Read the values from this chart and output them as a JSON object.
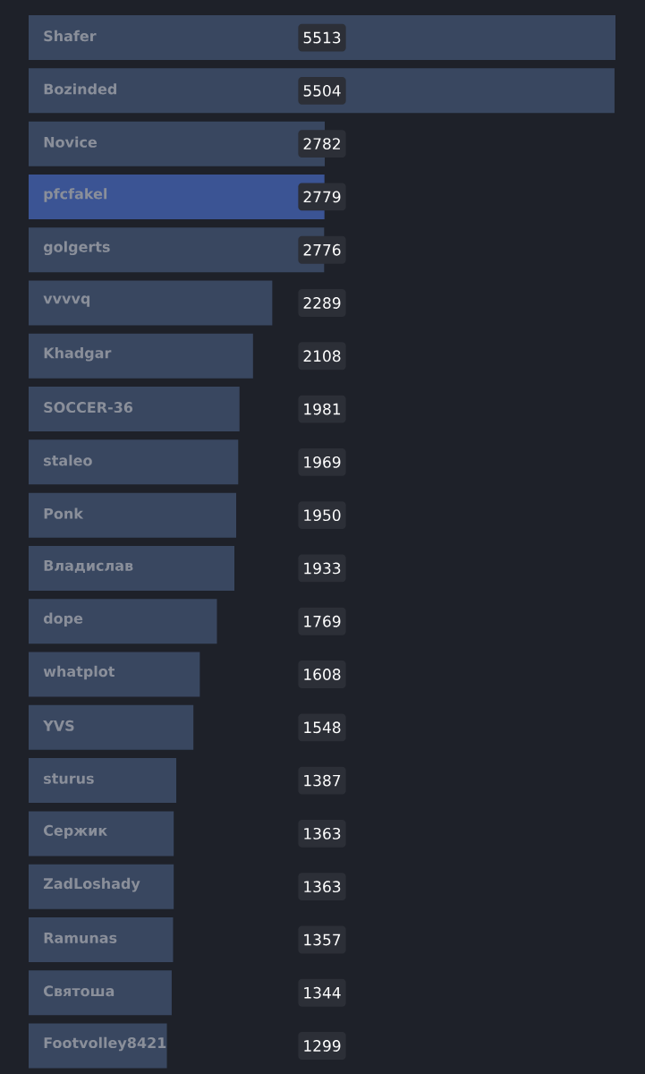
{
  "chart_data": {
    "type": "bar",
    "orientation": "horizontal",
    "categories": [
      "Shafer",
      "Bozinded",
      "Novice",
      "pfcfakel",
      "golgerts",
      "vvvvq",
      "Khadgar",
      "SOCCER-36",
      "staleo",
      "Ponk",
      "Владислав",
      "dope",
      "whatplot",
      "YVS",
      "sturus",
      "Сержик",
      "ZadLoshady",
      "Ramunas",
      "Святоша",
      "Footvolley8421"
    ],
    "values": [
      5513,
      5504,
      2782,
      2779,
      2776,
      2289,
      2108,
      1981,
      1969,
      1950,
      1933,
      1769,
      1608,
      1548,
      1387,
      1363,
      1363,
      1357,
      1344,
      1299
    ],
    "colors": [
      "#394760",
      "#394760",
      "#394760",
      "#3b5494",
      "#394760",
      "#394760",
      "#394760",
      "#394760",
      "#394760",
      "#394760",
      "#394760",
      "#394760",
      "#394760",
      "#394760",
      "#394760",
      "#394760",
      "#394760",
      "#394760",
      "#394760",
      "#394760"
    ],
    "data_labels": true
  }
}
